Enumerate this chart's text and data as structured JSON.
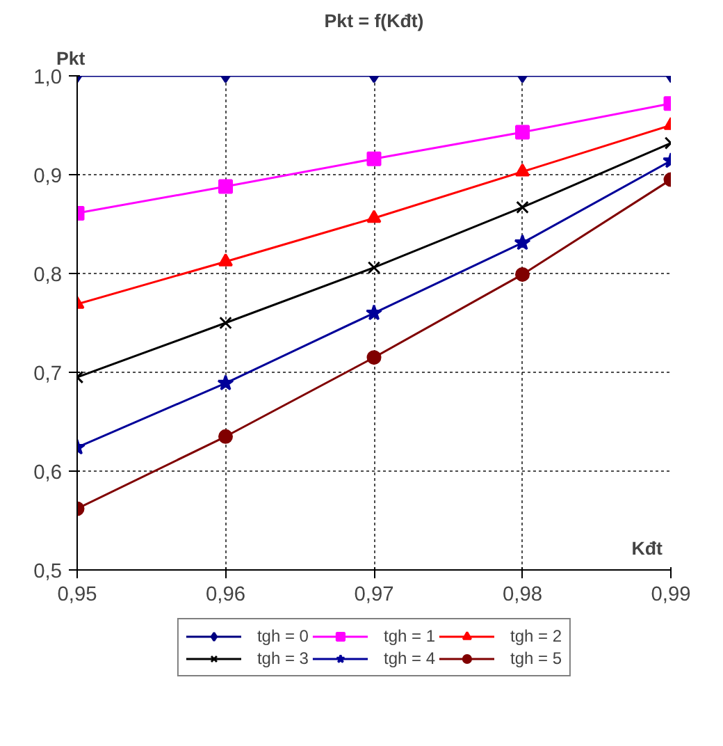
{
  "chart_data": {
    "type": "line",
    "title": "Pkt = f(Kđt)",
    "xlabel": "Kđt",
    "ylabel": "Pkt",
    "x": [
      0.95,
      0.96,
      0.97,
      0.98,
      0.99
    ],
    "xlim": [
      0.95,
      0.99
    ],
    "ylim": [
      0.5,
      1.0
    ],
    "xticks": [
      {
        "value": 0.95,
        "label": "0,95"
      },
      {
        "value": 0.96,
        "label": "0,96"
      },
      {
        "value": 0.97,
        "label": "0,97"
      },
      {
        "value": 0.98,
        "label": "0,98"
      },
      {
        "value": 0.99,
        "label": "0,99"
      }
    ],
    "yticks": [
      {
        "value": 0.5,
        "label": "0,5"
      },
      {
        "value": 0.6,
        "label": "0,6"
      },
      {
        "value": 0.7,
        "label": "0,7"
      },
      {
        "value": 0.8,
        "label": "0,8"
      },
      {
        "value": 0.9,
        "label": "0,9"
      },
      {
        "value": 1.0,
        "label": "1,0"
      }
    ],
    "grid": true,
    "legend": "bottom",
    "line_style": "solid",
    "series": [
      {
        "name": "tgh = 0",
        "color": "#000080",
        "marker": "diamond",
        "values": [
          1.0,
          1.0,
          1.0,
          1.0,
          1.0
        ]
      },
      {
        "name": "tgh = 1",
        "color": "#ff00ff",
        "marker": "square",
        "values": [
          0.861,
          0.888,
          0.916,
          0.943,
          0.972
        ]
      },
      {
        "name": "tgh = 2",
        "color": "#ff0000",
        "marker": "triangle",
        "values": [
          0.769,
          0.812,
          0.856,
          0.903,
          0.95
        ]
      },
      {
        "name": "tgh = 3",
        "color": "#000000",
        "marker": "cross",
        "values": [
          0.695,
          0.75,
          0.806,
          0.867,
          0.932
        ]
      },
      {
        "name": "tgh = 4",
        "color": "#000099",
        "marker": "star",
        "values": [
          0.624,
          0.689,
          0.76,
          0.831,
          0.914
        ]
      },
      {
        "name": "tgh = 5",
        "color": "#800000",
        "marker": "circle",
        "values": [
          0.562,
          0.635,
          0.715,
          0.799,
          0.895
        ]
      }
    ]
  }
}
